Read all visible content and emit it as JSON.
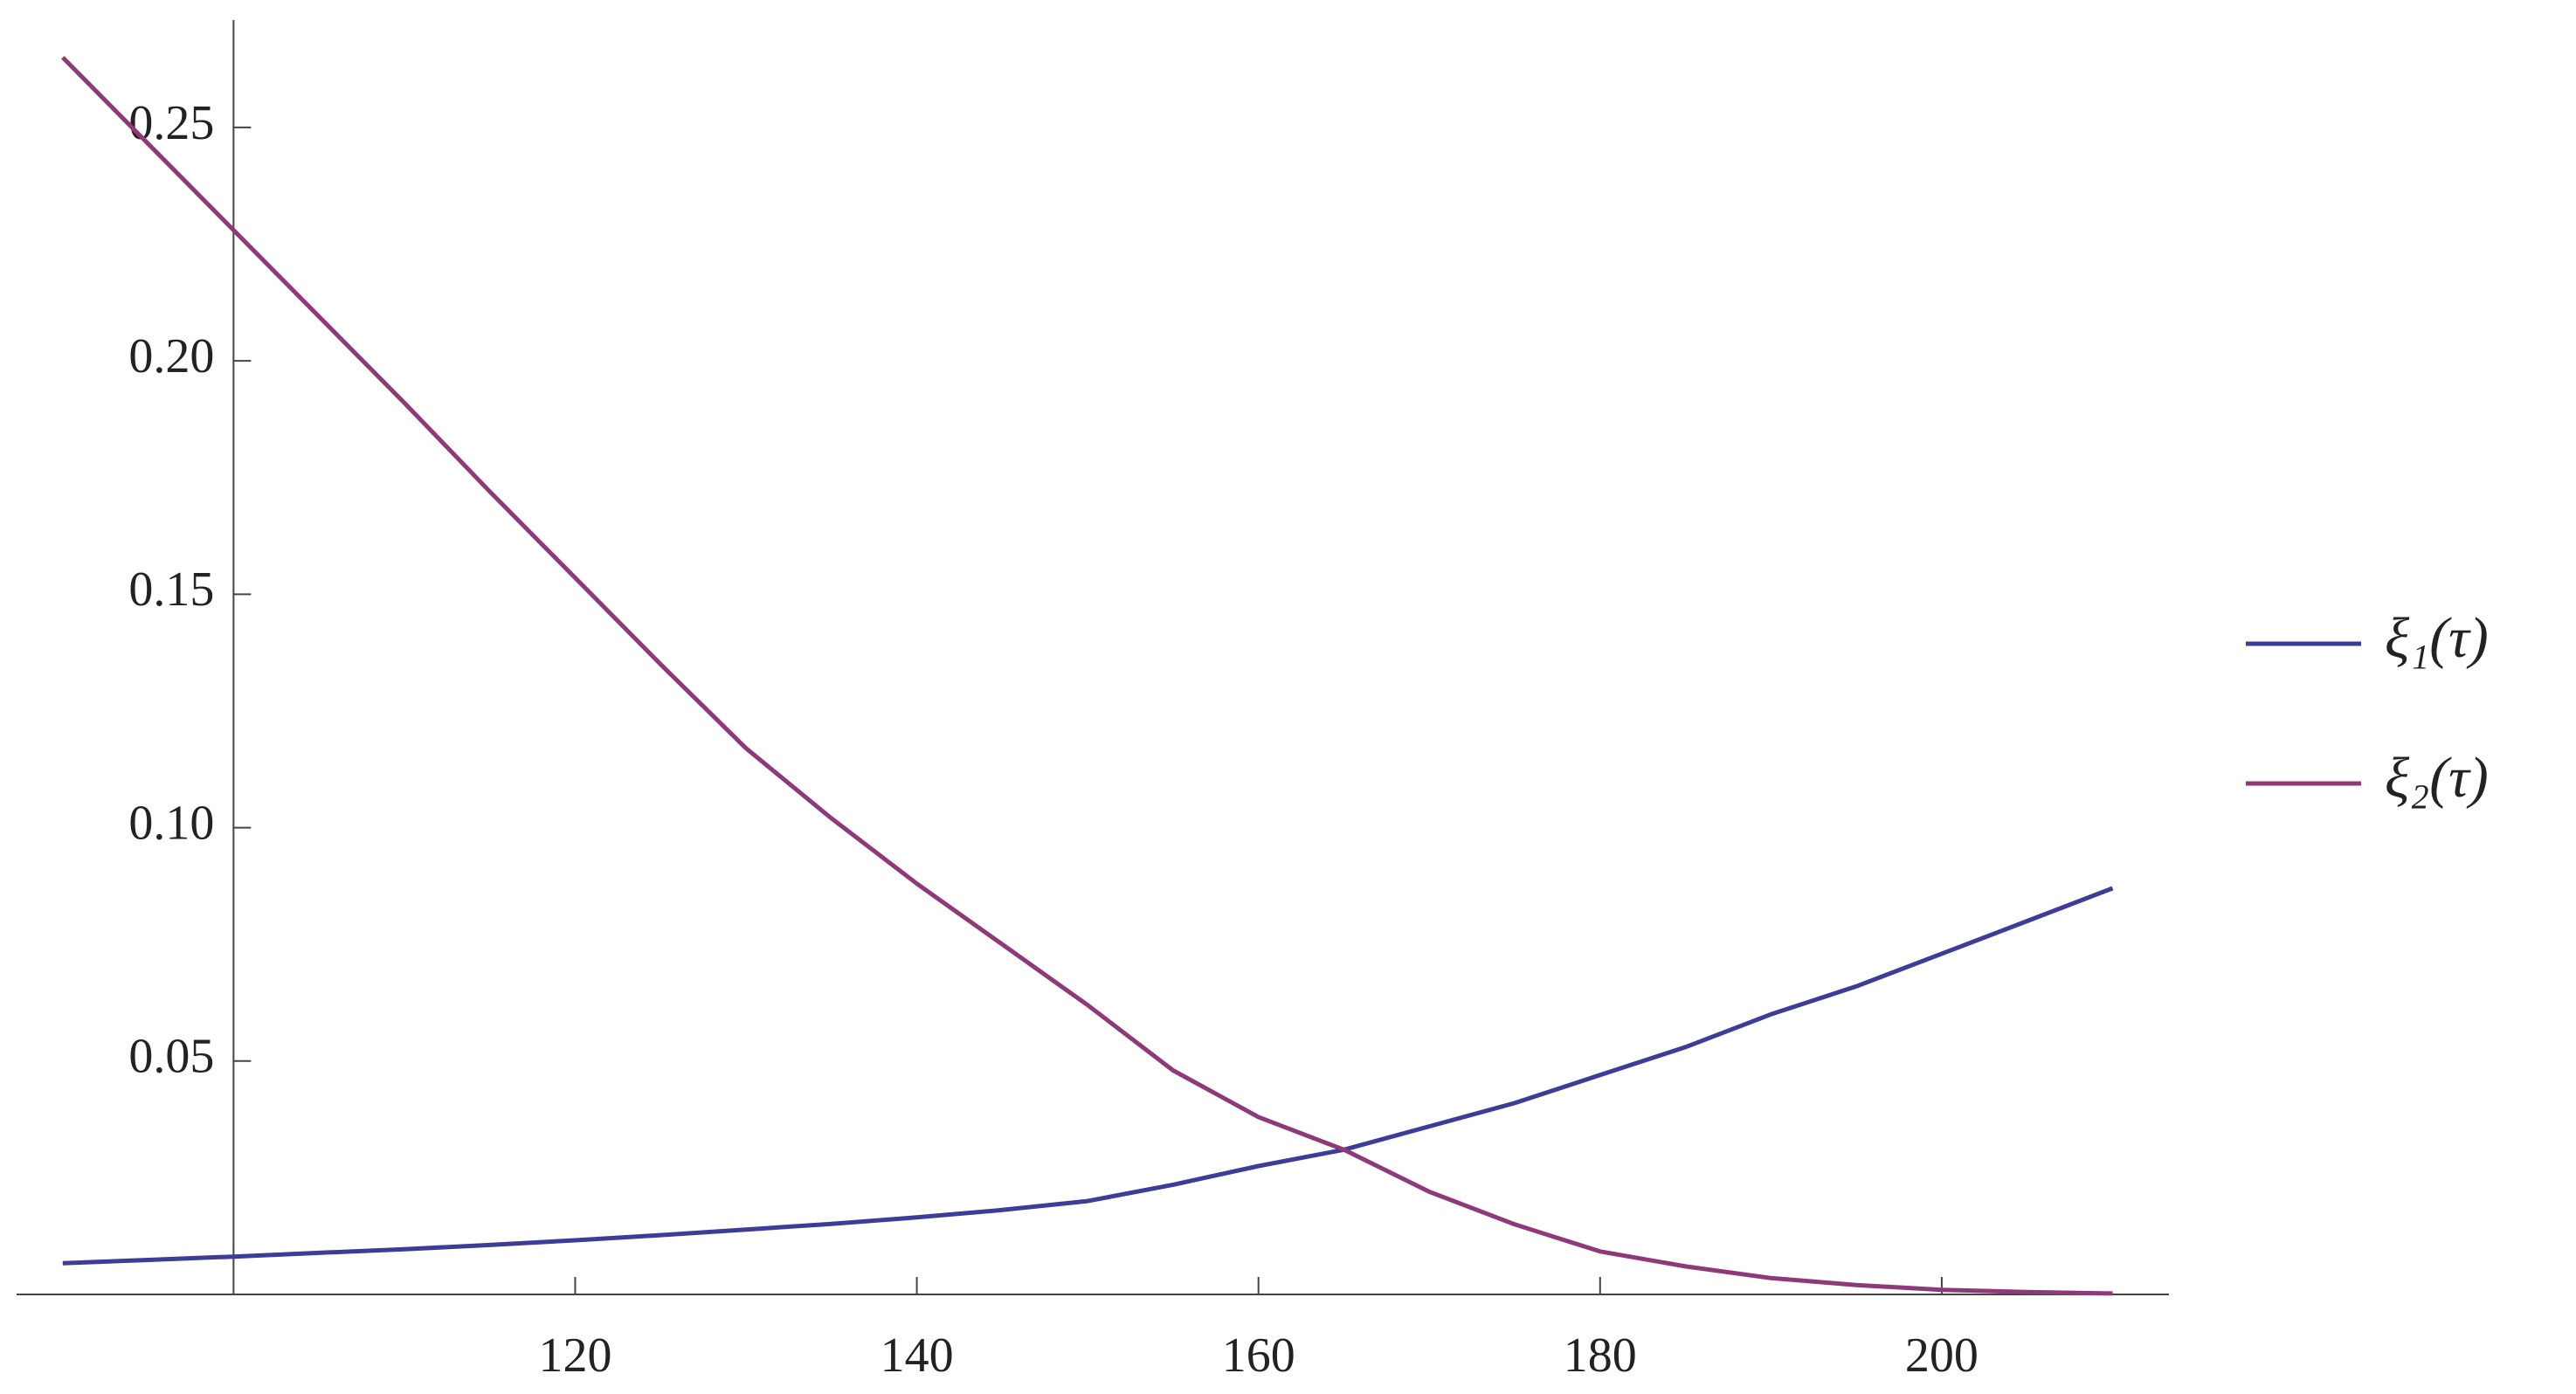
{
  "chart_data": {
    "type": "line",
    "x": [
      90,
      95,
      100,
      105,
      110,
      115,
      120,
      125,
      130,
      135,
      140,
      145,
      150,
      155,
      160,
      165,
      170,
      175,
      180,
      185,
      190,
      195,
      200,
      205,
      210
    ],
    "series": [
      {
        "name": "ξ₁(τ)",
        "color": "#3d3d99",
        "values": [
          0.0067,
          0.0074,
          0.0081,
          0.0089,
          0.0097,
          0.0106,
          0.0116,
          0.0127,
          0.0139,
          0.0151,
          0.0165,
          0.0181,
          0.02,
          0.0235,
          0.0275,
          0.031,
          0.036,
          0.041,
          0.047,
          0.053,
          0.06,
          0.066,
          0.073,
          0.08,
          0.087
        ]
      },
      {
        "name": "ξ₂(τ)",
        "color": "#8e3a78",
        "values": [
          0.265,
          0.2465,
          0.228,
          0.2095,
          0.191,
          0.172,
          0.1535,
          0.135,
          0.117,
          0.102,
          0.088,
          0.075,
          0.062,
          0.048,
          0.038,
          0.031,
          0.022,
          0.015,
          0.0092,
          0.006,
          0.0035,
          0.002,
          0.001,
          0.0005,
          0.0002
        ]
      }
    ],
    "xlim": [
      87.3,
      213.3
    ],
    "ylim": [
      0,
      0.273
    ],
    "xticks": [
      120,
      140,
      160,
      180,
      200
    ],
    "yticks": [
      0.05,
      {
        "value": 0.1,
        "label": "0.10"
      },
      0.15,
      {
        "value": 0.2,
        "label": "0.20"
      },
      0.25
    ],
    "y_axis_at": 100,
    "legend": "right"
  }
}
